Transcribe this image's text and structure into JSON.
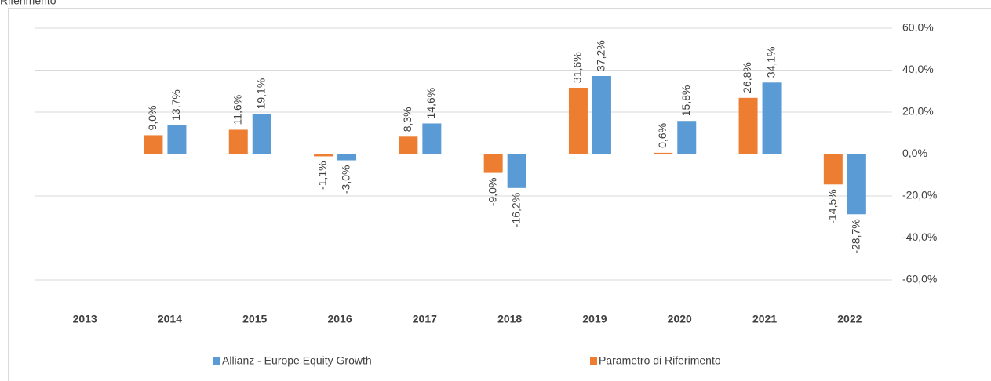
{
  "chart_data": {
    "type": "bar",
    "caption": "Riferimento",
    "categories": [
      "2013",
      "2014",
      "2015",
      "2016",
      "2017",
      "2018",
      "2019",
      "2020",
      "2021",
      "2022"
    ],
    "series": [
      {
        "name": "Allianz - Europe Equity Growth",
        "color": "#5b9bd5",
        "values": [
          null,
          13.7,
          19.1,
          -3.0,
          14.6,
          -16.2,
          37.2,
          15.8,
          34.1,
          -28.7
        ],
        "value_labels": [
          null,
          "13,7%",
          "19,1%",
          "-3,0%",
          "14,6%",
          "-16,2%",
          "37,2%",
          "15,8%",
          "34,1%",
          "-28,7%"
        ]
      },
      {
        "name": "Parametro di Riferimento",
        "color": "#ed7d31",
        "values": [
          null,
          9.0,
          11.6,
          -1.1,
          8.3,
          -9.0,
          31.6,
          0.6,
          26.8,
          -14.5
        ],
        "value_labels": [
          null,
          "9,0%",
          "11,6%",
          "-1,1%",
          "8,3%",
          "-9,0%",
          "31,6%",
          "0,6%",
          "26,8%",
          "-14,5%"
        ]
      }
    ],
    "ylim": [
      -60,
      60
    ],
    "yticks": [
      {
        "value": -60,
        "label": "-60,0%"
      },
      {
        "value": -40,
        "label": "-40,0%"
      },
      {
        "value": -20,
        "label": "-20,0%"
      },
      {
        "value": 0,
        "label": "0,0%"
      },
      {
        "value": 20,
        "label": "20,0%"
      },
      {
        "value": 40,
        "label": "40,0%"
      },
      {
        "value": 60,
        "label": "60,0%"
      }
    ],
    "grid": true
  }
}
